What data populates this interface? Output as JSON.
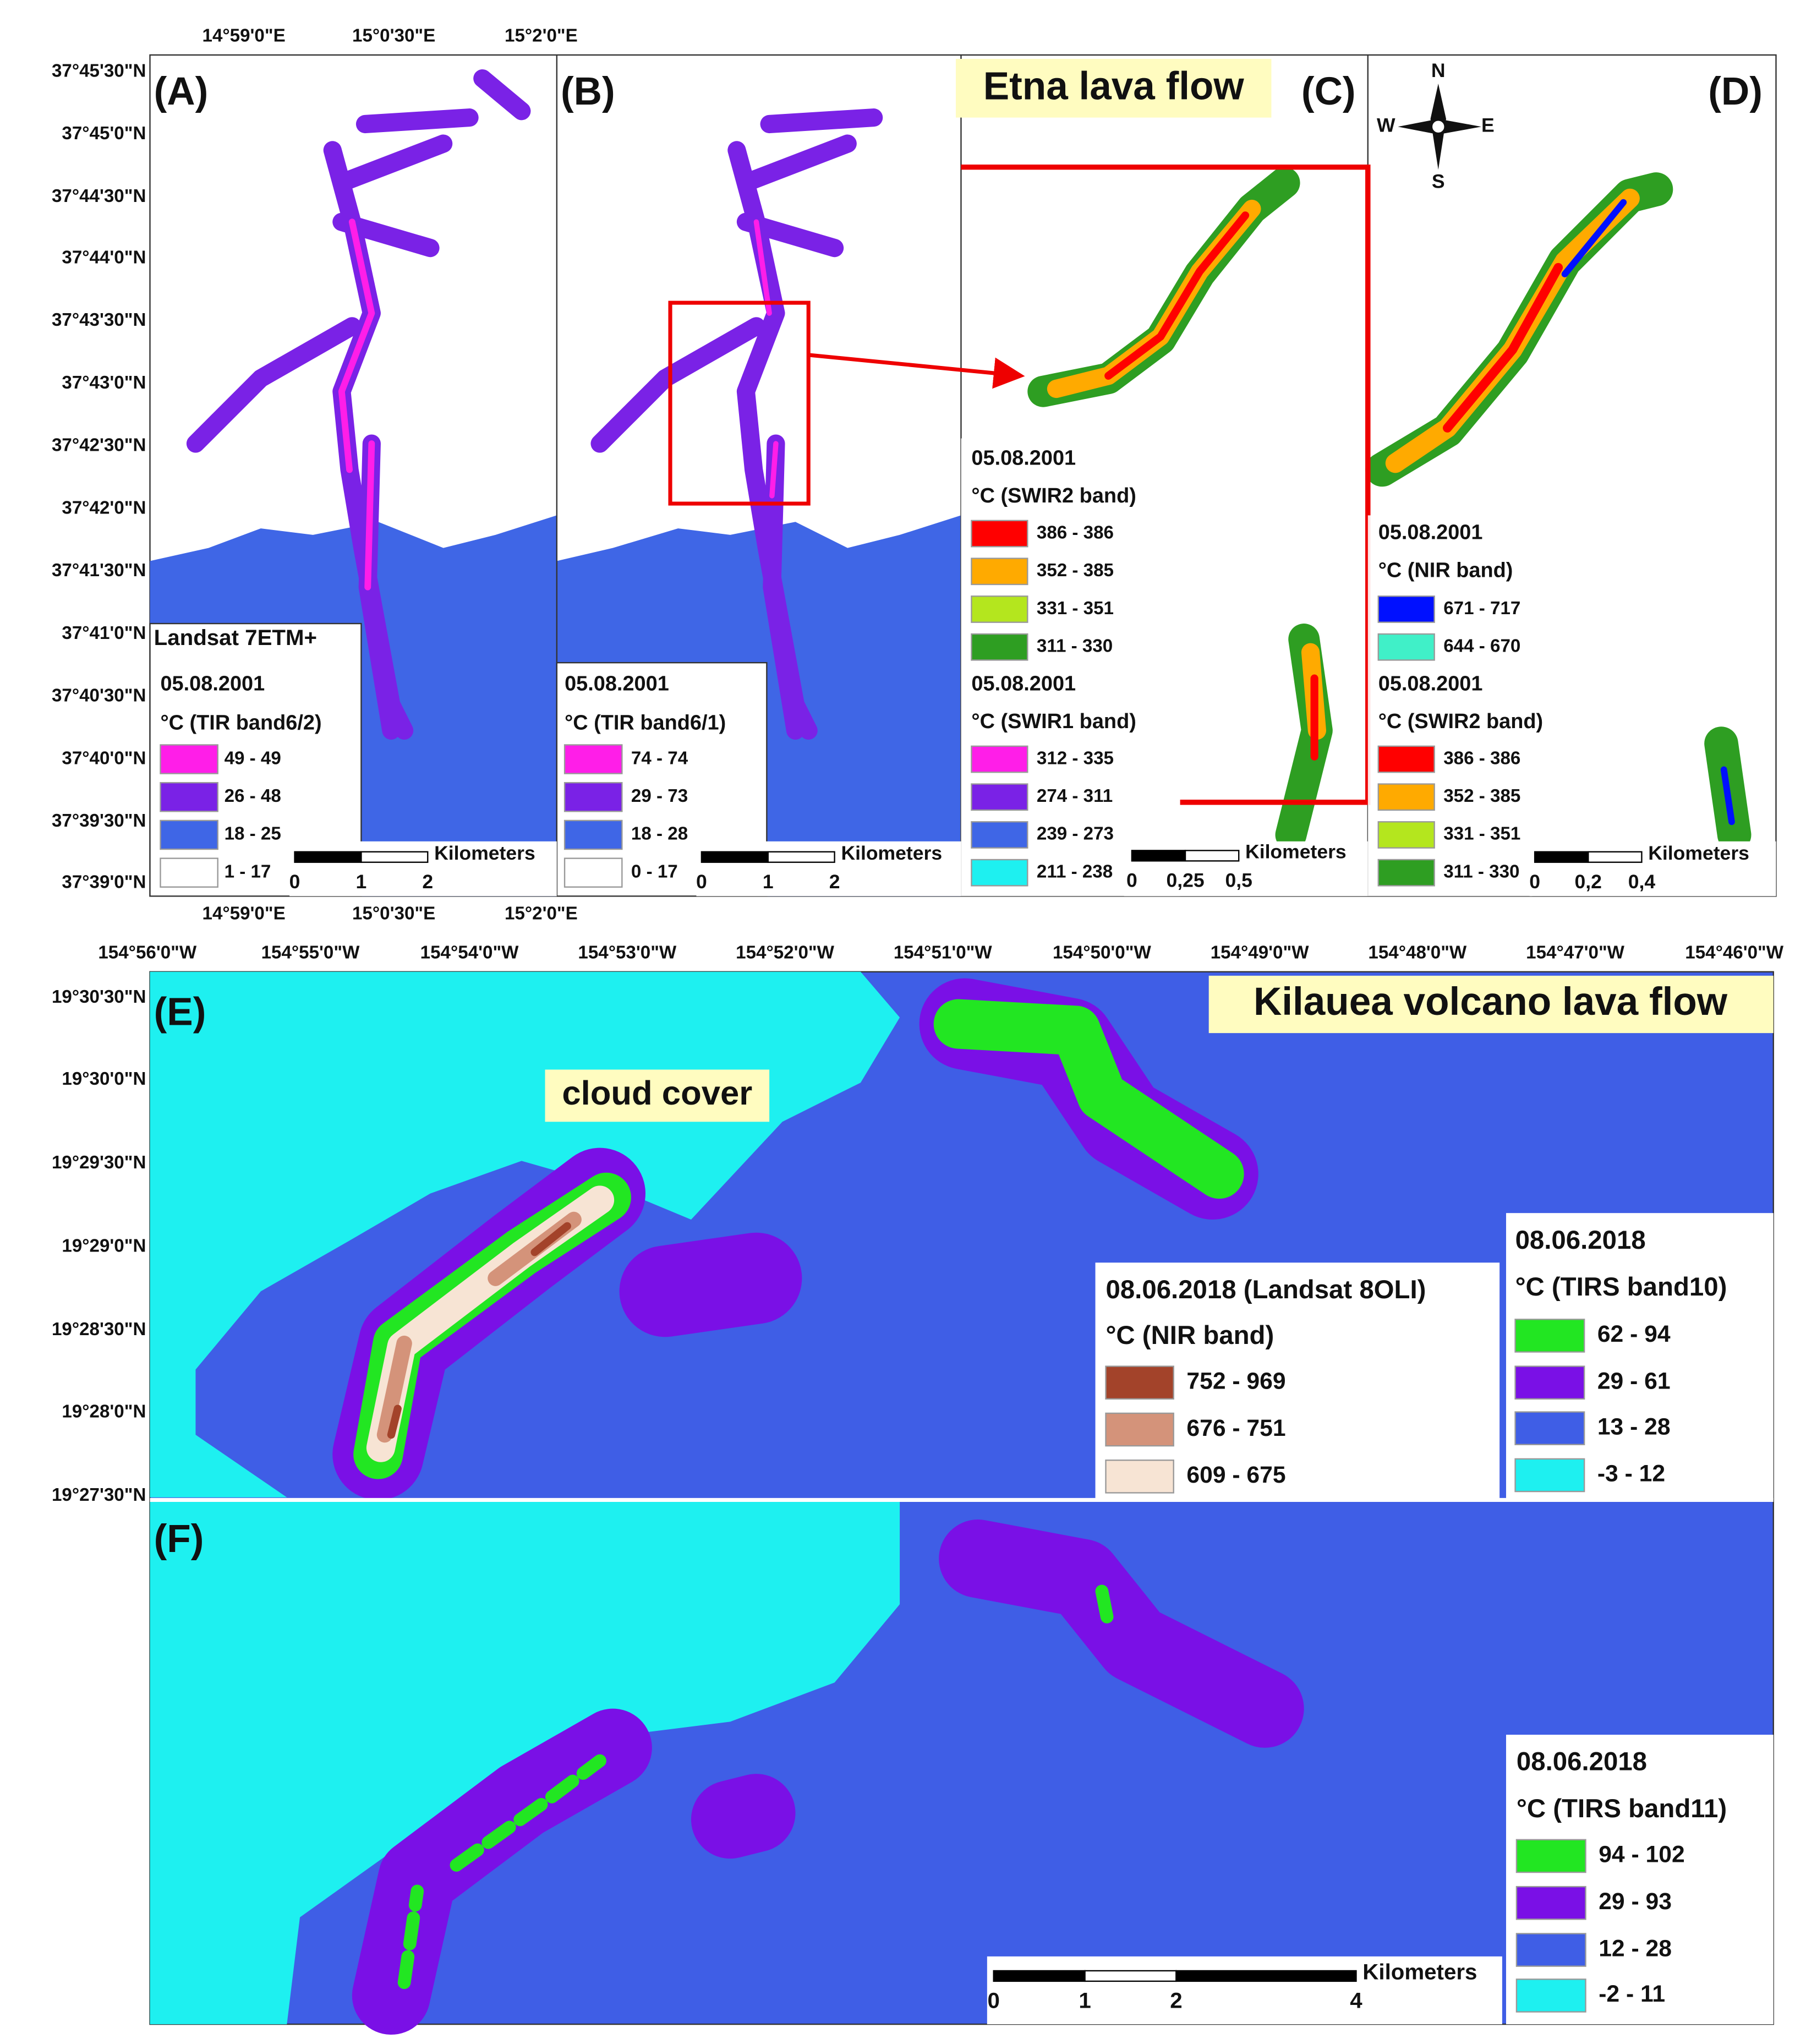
{
  "etna": {
    "title": "Etna lava flow",
    "lat_labels": [
      "37°45'30\"N",
      "37°45'0\"N",
      "37°44'30\"N",
      "37°44'0\"N",
      "37°43'30\"N",
      "37°43'0\"N",
      "37°42'30\"N",
      "37°42'0\"N",
      "37°41'30\"N",
      "37°41'0\"N",
      "37°40'30\"N",
      "37°40'0\"N",
      "37°39'30\"N",
      "37°39'0\"N"
    ],
    "lon_labels_top": [
      "14°59'0\"E",
      "15°0'30\"E",
      "15°2'0\"E"
    ],
    "lon_labels_bottom": [
      "14°59'0\"E",
      "15°0'30\"E",
      "15°2'0\"E"
    ],
    "compass": {
      "n": "N",
      "s": "S",
      "e": "E",
      "w": "W"
    },
    "panels": [
      {
        "label": "(A)",
        "legend_heading": "Landsat 7ETM+",
        "legends": [
          {
            "title": "05.08.2001",
            "subtitle": "°C (TIR band6/2)",
            "classes": [
              {
                "label": "49 - 49",
                "color": "#ff1ee8"
              },
              {
                "label": "26 - 48",
                "color": "#7a22e6"
              },
              {
                "label": "18 - 25",
                "color": "#3f66e6"
              },
              {
                "label": "1 - 17",
                "color": "#ffffff"
              }
            ]
          }
        ],
        "scale": {
          "unit": "Kilometers",
          "ticks": [
            "0",
            "1",
            "2"
          ]
        }
      },
      {
        "label": "(B)",
        "legends": [
          {
            "title": "05.08.2001",
            "subtitle": "°C (TIR band6/1)",
            "classes": [
              {
                "label": "74 - 74",
                "color": "#ff1ee8"
              },
              {
                "label": "29 - 73",
                "color": "#7a22e6"
              },
              {
                "label": "18 - 28",
                "color": "#3f66e6"
              },
              {
                "label": "0 - 17",
                "color": "#ffffff"
              }
            ]
          }
        ],
        "scale": {
          "unit": "Kilometers",
          "ticks": [
            "0",
            "1",
            "2"
          ]
        }
      },
      {
        "label": "(C)",
        "legends": [
          {
            "title": "05.08.2001",
            "subtitle": "°C (SWIR2 band)",
            "classes": [
              {
                "label": "386 - 386",
                "color": "#ff0000"
              },
              {
                "label": "352 - 385",
                "color": "#ffaa00"
              },
              {
                "label": "331 - 351",
                "color": "#b4e61e"
              },
              {
                "label": "311 - 330",
                "color": "#2e9e22"
              }
            ]
          },
          {
            "title": "05.08.2001",
            "subtitle": "°C (SWIR1 band)",
            "classes": [
              {
                "label": "312 - 335",
                "color": "#ff1ee8"
              },
              {
                "label": "274 - 311",
                "color": "#7a22e6"
              },
              {
                "label": "239 - 273",
                "color": "#3f66e6"
              },
              {
                "label": "211 - 238",
                "color": "#1ef0f0"
              }
            ]
          }
        ],
        "scale": {
          "unit": "Kilometers",
          "ticks": [
            "0",
            "0,25",
            "0,5"
          ]
        }
      },
      {
        "label": "(D)",
        "legends": [
          {
            "title": "05.08.2001",
            "subtitle": "°C (NIR band)",
            "classes": [
              {
                "label": "671 - 717",
                "color": "#0010ff"
              },
              {
                "label": "644 - 670",
                "color": "#40f0c8"
              }
            ]
          },
          {
            "title": "05.08.2001",
            "subtitle": "°C (SWIR2 band)",
            "classes": [
              {
                "label": "386 - 386",
                "color": "#ff0000"
              },
              {
                "label": "352 - 385",
                "color": "#ffaa00"
              },
              {
                "label": "331 - 351",
                "color": "#b4e61e"
              },
              {
                "label": "311 - 330",
                "color": "#2e9e22"
              }
            ]
          }
        ],
        "scale": {
          "unit": "Kilometers",
          "ticks": [
            "0",
            "0,2",
            "0,4"
          ]
        }
      }
    ]
  },
  "kilauea": {
    "title": "Kilauea volcano lava flow",
    "annotation": "cloud cover",
    "lon_labels": [
      "154°56'0\"W",
      "154°55'0\"W",
      "154°54'0\"W",
      "154°53'0\"W",
      "154°52'0\"W",
      "154°51'0\"W",
      "154°50'0\"W",
      "154°49'0\"W",
      "154°48'0\"W",
      "154°47'0\"W",
      "154°46'0\"W"
    ],
    "lat_labels": [
      "19°30'30\"N",
      "19°30'0\"N",
      "19°29'30\"N",
      "19°29'0\"N",
      "19°28'30\"N",
      "19°28'0\"N",
      "19°27'30\"N"
    ],
    "panels": [
      {
        "label": "(E)",
        "legends": [
          {
            "title": "08.06.2018 (Landsat 8OLI)",
            "subtitle": "°C (NIR band)",
            "classes": [
              {
                "label": "752 - 969",
                "color": "#a3432a"
              },
              {
                "label": "676 - 751",
                "color": "#d4937a"
              },
              {
                "label": "609 - 675",
                "color": "#f7e4d4"
              }
            ]
          },
          {
            "title": "08.06.2018",
            "subtitle": "°C (TIRS band10)",
            "classes": [
              {
                "label": "62 - 94",
                "color": "#22e622"
              },
              {
                "label": "29 - 61",
                "color": "#7a10e6"
              },
              {
                "label": "13 - 28",
                "color": "#3f5ee6"
              },
              {
                "label": "-3 - 12",
                "color": "#1ef0f0"
              }
            ]
          }
        ]
      },
      {
        "label": "(F)",
        "legends": [
          {
            "title": "08.06.2018",
            "subtitle": "°C (TIRS band11)",
            "classes": [
              {
                "label": "94 - 102",
                "color": "#22e622"
              },
              {
                "label": "29 - 93",
                "color": "#7a10e6"
              },
              {
                "label": "12 - 28",
                "color": "#3f5ee6"
              },
              {
                "label": "-2 - 11",
                "color": "#1ef0f0"
              }
            ]
          }
        ],
        "scale": {
          "unit": "Kilometers",
          "ticks": [
            "0",
            "1",
            "2",
            "4"
          ]
        }
      }
    ]
  }
}
